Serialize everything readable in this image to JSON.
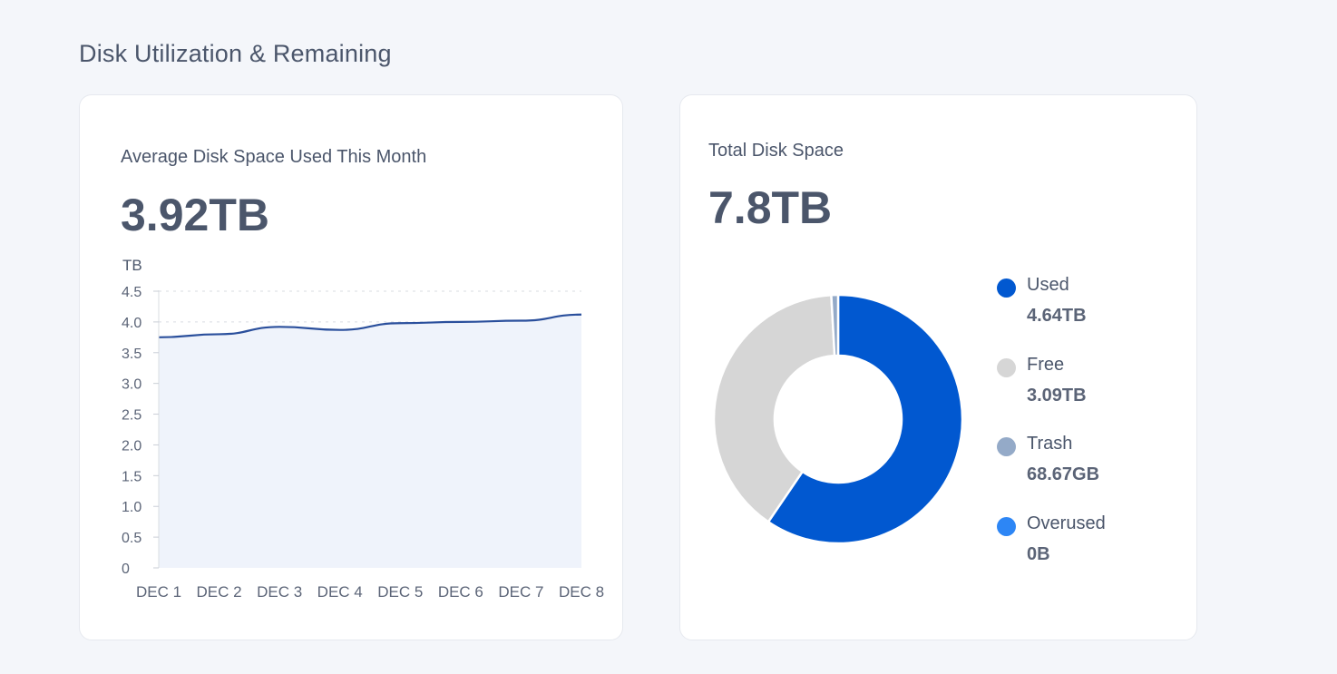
{
  "page": {
    "title": "Disk Utilization & Remaining"
  },
  "colors": {
    "used": "#0158d0",
    "free": "#d6d6d6",
    "trash": "#94aac8",
    "overused": "#2d86f5",
    "line": "#2a4f9c",
    "area": "#eff3fb"
  },
  "usage_card": {
    "label": "Average Disk Space Used This Month",
    "value": "3.92TB"
  },
  "total_card": {
    "label": "Total Disk Space",
    "value": "7.8TB"
  },
  "chart_data": [
    {
      "type": "area",
      "title": "",
      "ylabel": "TB",
      "xlabel": "",
      "categories": [
        "DEC 1",
        "DEC 2",
        "DEC 3",
        "DEC 4",
        "DEC 5",
        "DEC 6",
        "DEC 7",
        "DEC 8"
      ],
      "values": [
        3.75,
        3.8,
        3.92,
        3.87,
        3.98,
        4.0,
        4.02,
        4.12
      ],
      "ylim": [
        0,
        4.5
      ],
      "yticks": [
        "0",
        "0.5",
        "1.0",
        "1.5",
        "2.0",
        "2.5",
        "3.0",
        "3.5",
        "4.0",
        "4.5"
      ],
      "grid": "dashed at 4.0 and 4.5"
    },
    {
      "type": "pie",
      "style": "donut",
      "legend_position": "right",
      "slices": [
        {
          "name": "Used",
          "value_label": "4.64TB",
          "value": 4.64,
          "color": "#0158d0"
        },
        {
          "name": "Free",
          "value_label": "3.09TB",
          "value": 3.09,
          "color": "#d6d6d6"
        },
        {
          "name": "Trash",
          "value_label": "68.67GB",
          "value": 0.06867,
          "color": "#94aac8"
        },
        {
          "name": "Overused",
          "value_label": "0B",
          "value": 0,
          "color": "#2d86f5"
        }
      ]
    }
  ]
}
